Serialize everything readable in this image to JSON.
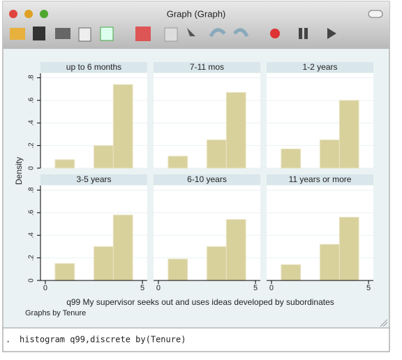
{
  "window": {
    "title": "Graph (Graph)",
    "prompt": ".",
    "command": "histogram q99,discrete by(Tenure)"
  },
  "chart_data": {
    "type": "histogram",
    "ylabel": "Density",
    "xlabel": "q99 My supervisor seeks out and uses ideas developed by subordinates",
    "note": "Graphs by Tenure",
    "color": "#d9d19c",
    "grid": true,
    "xlim": [
      -0.25,
      5.25
    ],
    "xticks": [
      0,
      5
    ],
    "ylim": [
      0,
      0.84
    ],
    "yticks": [
      0,
      {
        "value": 0.2,
        "label": ".2"
      },
      {
        "value": 0.4,
        "label": ".4"
      },
      {
        "value": 0.6,
        "label": ".6"
      },
      {
        "value": 0.8,
        "label": ".8"
      }
    ],
    "panels": [
      {
        "title": "up to 6 months",
        "x": [
          1,
          3,
          4
        ],
        "values": [
          0.075,
          0.2,
          0.74
        ]
      },
      {
        "title": "7-11 mos",
        "x": [
          1,
          3,
          4
        ],
        "values": [
          0.106,
          0.25,
          0.67
        ]
      },
      {
        "title": "1-2 years",
        "x": [
          1,
          3,
          4
        ],
        "values": [
          0.17,
          0.25,
          0.6
        ]
      },
      {
        "title": "3-5 years",
        "x": [
          1,
          3,
          4
        ],
        "values": [
          0.15,
          0.3,
          0.58
        ]
      },
      {
        "title": "6-10 years",
        "x": [
          1,
          3,
          4
        ],
        "values": [
          0.19,
          0.3,
          0.54
        ]
      },
      {
        "title": "11 years or more",
        "x": [
          1,
          3,
          4
        ],
        "values": [
          0.14,
          0.32,
          0.56
        ]
      }
    ]
  }
}
